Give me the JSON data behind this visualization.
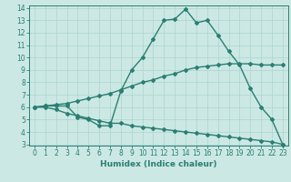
{
  "x": [
    0,
    1,
    2,
    3,
    4,
    5,
    6,
    7,
    8,
    9,
    10,
    11,
    12,
    13,
    14,
    15,
    16,
    17,
    18,
    19,
    20,
    21,
    22,
    23
  ],
  "line1": [
    6.0,
    6.1,
    6.1,
    6.1,
    5.2,
    5.0,
    4.5,
    4.5,
    7.3,
    9.0,
    10.0,
    11.5,
    13.0,
    13.1,
    13.9,
    12.8,
    13.0,
    11.8,
    10.5,
    9.4,
    7.5,
    6.0,
    5.0,
    3.0
  ],
  "line2": [
    6.0,
    6.1,
    6.2,
    6.3,
    6.5,
    6.7,
    6.9,
    7.1,
    7.4,
    7.7,
    8.0,
    8.2,
    8.5,
    8.7,
    9.0,
    9.2,
    9.3,
    9.4,
    9.5,
    9.5,
    9.5,
    9.4,
    9.4,
    9.4
  ],
  "line3": [
    6.0,
    6.0,
    5.8,
    5.5,
    5.3,
    5.1,
    4.9,
    4.7,
    4.7,
    4.5,
    4.4,
    4.3,
    4.2,
    4.1,
    4.0,
    3.9,
    3.8,
    3.7,
    3.6,
    3.5,
    3.4,
    3.3,
    3.2,
    3.0
  ],
  "line_color": "#2a7f72",
  "bg_color": "#cce8e4",
  "grid_color": "#aad4ce",
  "xlabel": "Humidex (Indice chaleur)",
  "ylim_min": 3,
  "ylim_max": 14,
  "xlim_min": -0.5,
  "xlim_max": 23.5,
  "yticks": [
    3,
    4,
    5,
    6,
    7,
    8,
    9,
    10,
    11,
    12,
    13,
    14
  ],
  "xticks": [
    0,
    1,
    2,
    3,
    4,
    5,
    6,
    7,
    8,
    9,
    10,
    11,
    12,
    13,
    14,
    15,
    16,
    17,
    18,
    19,
    20,
    21,
    22,
    23
  ],
  "marker": "D",
  "markersize": 2.0,
  "linewidth": 1.0,
  "xlabel_fontsize": 6.5,
  "tick_fontsize": 5.5
}
